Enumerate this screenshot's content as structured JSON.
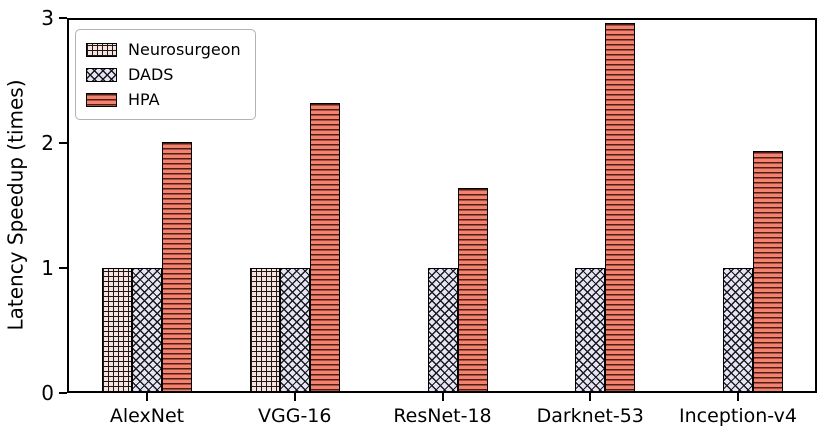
{
  "chart_data": {
    "type": "bar",
    "title": "",
    "xlabel": "",
    "ylabel": "Latency Speedup (times)",
    "categories": [
      "AlexNet",
      "VGG-16",
      "ResNet-18",
      "Darknet-53",
      "Inception-v4"
    ],
    "series": [
      {
        "name": "Neurosurgeon",
        "values": [
          1.0,
          1.0,
          0,
          0,
          0
        ],
        "fill": "#f9e2dc",
        "hatch": "grid"
      },
      {
        "name": "DADS",
        "values": [
          1.0,
          1.0,
          1.0,
          1.0,
          1.0
        ],
        "fill": "#e5e5f7",
        "hatch": "cross"
      },
      {
        "name": "HPA",
        "values": [
          2.01,
          2.32,
          1.64,
          2.96,
          1.94
        ],
        "fill": "#f4826e",
        "hatch": "horizontal"
      }
    ],
    "ylim": [
      0,
      3
    ],
    "yticks": [
      0,
      1,
      2,
      3
    ],
    "yticklabels": [
      "0",
      "1",
      "2",
      "3"
    ],
    "legend_position": "upper-left",
    "grid": false,
    "edge_color": "#000000",
    "background_color": "#ffffff"
  }
}
